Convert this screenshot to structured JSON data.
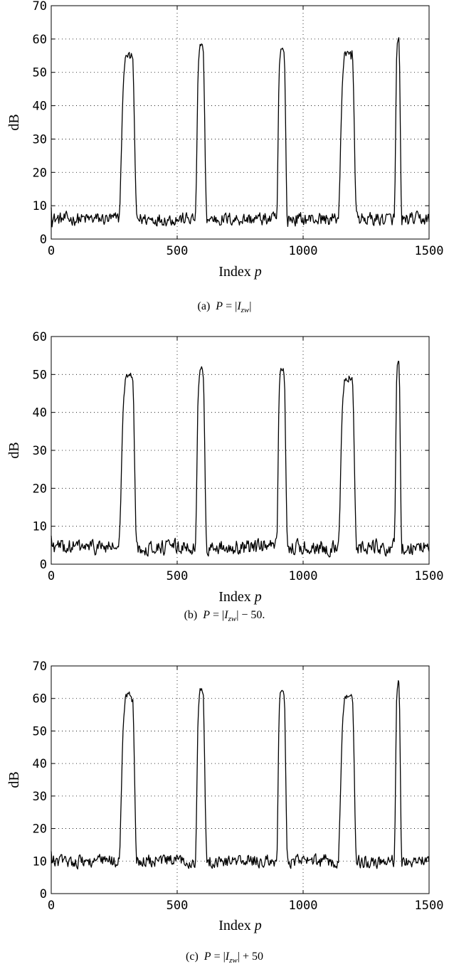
{
  "chart_data": [
    {
      "type": "line",
      "xlabel": "Index p",
      "ylabel": "dB",
      "xlim": [
        0,
        1500
      ],
      "ylim": [
        0,
        70
      ],
      "xticks": [
        "0",
        "500",
        "1000",
        "1500"
      ],
      "yticks": [
        "0",
        "10",
        "20",
        "30",
        "40",
        "50",
        "60",
        "70"
      ],
      "grid": true,
      "caption": "(a)  P = |Izw|",
      "series": [
        {
          "noise_floor": 6,
          "x": [
            0,
            300,
            310,
            320,
            594,
            604,
            916,
            924,
            1170,
            1180,
            1190,
            1378
          ],
          "y": [
            9.5,
            55,
            56,
            55,
            58,
            56,
            57,
            56,
            55,
            56,
            54,
            60
          ],
          "peaks": [
            {
              "start": 268,
              "rise_end": 290,
              "top_from": 295,
              "top_to": 322,
              "fall_end": 340,
              "top": 55
            },
            {
              "start": 572,
              "rise_end": 585,
              "top_from": 590,
              "top_to": 602,
              "fall_end": 618,
              "top": 58
            },
            {
              "start": 895,
              "rise_end": 906,
              "top_from": 910,
              "top_to": 924,
              "fall_end": 938,
              "top": 57
            },
            {
              "start": 1138,
              "rise_end": 1160,
              "top_from": 1165,
              "top_to": 1195,
              "fall_end": 1212,
              "top": 56
            },
            {
              "start": 1362,
              "rise_end": 1372,
              "top_from": 1375,
              "top_to": 1380,
              "fall_end": 1392,
              "top": 60
            }
          ]
        }
      ]
    },
    {
      "type": "line",
      "xlabel": "Index p",
      "ylabel": "dB",
      "xlim": [
        0,
        1500
      ],
      "ylim": [
        0,
        60
      ],
      "xticks": [
        "0",
        "500",
        "1000",
        "1500"
      ],
      "yticks": [
        "0",
        "10",
        "20",
        "30",
        "40",
        "50",
        "60"
      ],
      "grid": true,
      "caption": "(b)  P = |Izw| − 50.",
      "series": [
        {
          "noise_floor": 4.5,
          "x": [
            0,
            300,
            310,
            594,
            604,
            916,
            924,
            1170,
            1180,
            1378
          ],
          "y": [
            7.5,
            50,
            50,
            51.5,
            49,
            51,
            50,
            49,
            48,
            53.5
          ],
          "peaks": [
            {
              "start": 268,
              "rise_end": 290,
              "top_from": 295,
              "top_to": 322,
              "fall_end": 340,
              "top": 50
            },
            {
              "start": 572,
              "rise_end": 585,
              "top_from": 590,
              "top_to": 602,
              "fall_end": 618,
              "top": 51.5
            },
            {
              "start": 895,
              "rise_end": 906,
              "top_from": 910,
              "top_to": 924,
              "fall_end": 938,
              "top": 51
            },
            {
              "start": 1138,
              "rise_end": 1160,
              "top_from": 1165,
              "top_to": 1195,
              "fall_end": 1212,
              "top": 49
            },
            {
              "start": 1362,
              "rise_end": 1372,
              "top_from": 1375,
              "top_to": 1380,
              "fall_end": 1392,
              "top": 53.5
            }
          ]
        }
      ]
    },
    {
      "type": "line",
      "xlabel": "Index p",
      "ylabel": "dB",
      "xlim": [
        0,
        1500
      ],
      "ylim": [
        0,
        70
      ],
      "xticks": [
        "0",
        "500",
        "1000",
        "1500"
      ],
      "yticks": [
        "0",
        "10",
        "20",
        "30",
        "40",
        "50",
        "60",
        "70"
      ],
      "grid": true,
      "caption": "(c)  P = |Izw| + 50",
      "series": [
        {
          "noise_floor": 10,
          "x": [
            0,
            310,
            320,
            594,
            604,
            916,
            924,
            1170,
            1180,
            1378
          ],
          "y": [
            13,
            62,
            59,
            62.5,
            61,
            62.5,
            61,
            60,
            60.5,
            65.5
          ],
          "peaks": [
            {
              "start": 268,
              "rise_end": 290,
              "top_from": 295,
              "top_to": 322,
              "fall_end": 340,
              "top": 61
            },
            {
              "start": 572,
              "rise_end": 585,
              "top_from": 590,
              "top_to": 602,
              "fall_end": 618,
              "top": 62.5
            },
            {
              "start": 895,
              "rise_end": 906,
              "top_from": 910,
              "top_to": 924,
              "fall_end": 938,
              "top": 62.5
            },
            {
              "start": 1138,
              "rise_end": 1160,
              "top_from": 1165,
              "top_to": 1195,
              "fall_end": 1212,
              "top": 60.5
            },
            {
              "start": 1362,
              "rise_end": 1372,
              "top_from": 1375,
              "top_to": 1380,
              "fall_end": 1392,
              "top": 65.5
            }
          ]
        }
      ]
    }
  ],
  "captions": [
    {
      "label": "(a)",
      "eq_left": "P",
      "eq_op": "=",
      "abs_main": "I",
      "abs_sub": "zw",
      "suffix": ""
    },
    {
      "label": "(b)",
      "eq_left": "P",
      "eq_op": "=",
      "abs_main": "I",
      "abs_sub": "zw",
      "suffix": " − 50."
    },
    {
      "label": "(c)",
      "eq_left": "P",
      "eq_op": "=",
      "abs_main": "I",
      "abs_sub": "zw",
      "suffix": " + 50"
    }
  ]
}
